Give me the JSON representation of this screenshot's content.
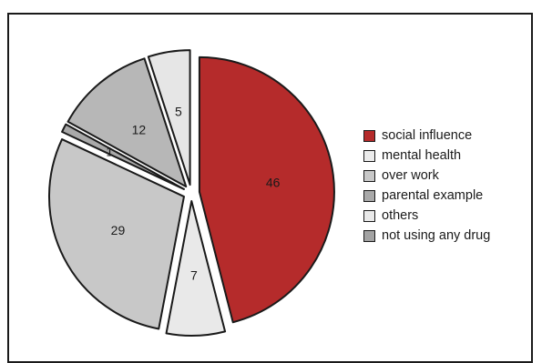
{
  "chart_data": {
    "type": "pie",
    "title": "",
    "legend_position": "right",
    "slices": [
      {
        "label": "social influence",
        "value": 46,
        "color": "#b52b2b"
      },
      {
        "label": "mental health",
        "value": 7,
        "color": "#e9e9e9"
      },
      {
        "label": "over work",
        "value": 29,
        "color": "#c8c8c8"
      },
      {
        "label": "parental example",
        "value": 1,
        "color": "#a9a9a9"
      },
      {
        "label": "others",
        "value": 12,
        "color": "#b7b7b7"
      },
      {
        "label": "not using any drug",
        "value": 5,
        "color": "#e6e6e6"
      }
    ],
    "legend_colors": [
      "#b52b2b",
      "#ececec",
      "#c8c8c8",
      "#a9a9a9",
      "#e9e9e9",
      "#a3a3a3"
    ]
  }
}
